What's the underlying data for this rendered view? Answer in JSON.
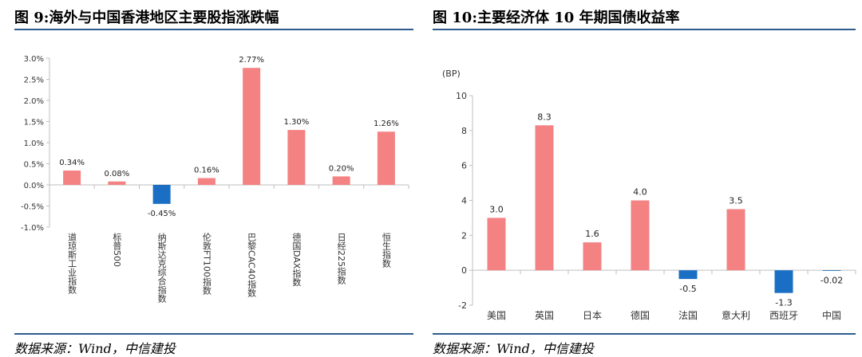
{
  "left_panel": {
    "title": "图 9:海外与中国香港地区主要股指涨跌幅",
    "source": "数据来源：Wind，中信建投"
  },
  "right_panel": {
    "title": "图 10:主要经济体 10 年期国债收益率",
    "source": "数据来源：Wind，中信建投"
  },
  "colors": {
    "positive": "#f48283",
    "negative": "#1a6fc4",
    "rule": "#2e5d8c",
    "axis": "#bfbfbf"
  },
  "chart_data": [
    {
      "type": "bar",
      "title": "",
      "categories": [
        "道琼斯工业指数",
        "标普500",
        "纳斯达克综合指数",
        "伦敦FT100指数",
        "巴黎CAC40指数",
        "德国DAX指数",
        "日经225指数",
        "恒生指数"
      ],
      "values": [
        0.34,
        0.08,
        -0.45,
        0.16,
        2.77,
        1.3,
        0.2,
        1.26
      ],
      "value_labels": [
        "0.34%",
        "0.08%",
        "-0.45%",
        "0.16%",
        "2.77%",
        "1.30%",
        "0.20%",
        "1.26%"
      ],
      "ylim": [
        -1.0,
        3.0
      ],
      "yticks": [
        3.0,
        2.5,
        2.0,
        1.5,
        1.0,
        0.5,
        0.0,
        -0.5,
        -1.0
      ],
      "ytick_labels": [
        "3.0%",
        "2.5%",
        "2.0%",
        "1.5%",
        "1.0%",
        "0.5%",
        "0.0%",
        "-0.5%",
        "-1.0%"
      ],
      "ylabel": "",
      "xlabel": "",
      "grid": false,
      "x_labels_vertical": true
    },
    {
      "type": "bar",
      "title": "",
      "categories": [
        "美国",
        "英国",
        "日本",
        "德国",
        "法国",
        "意大利",
        "西班牙",
        "中国"
      ],
      "values": [
        3.0,
        8.3,
        1.6,
        4.0,
        -0.5,
        3.5,
        -1.3,
        -0.02
      ],
      "value_labels": [
        "3.0",
        "8.3",
        "1.6",
        "4.0",
        "-0.5",
        "3.5",
        "-1.3",
        "-0.02"
      ],
      "ylim": [
        -2,
        10
      ],
      "yticks": [
        10,
        8,
        6,
        4,
        2,
        0,
        -2
      ],
      "ytick_labels": [
        "10",
        "8",
        "6",
        "4",
        "2",
        "0",
        "-2"
      ],
      "ylabel": "(BP)",
      "xlabel": "",
      "grid": false,
      "x_labels_vertical": false
    }
  ]
}
